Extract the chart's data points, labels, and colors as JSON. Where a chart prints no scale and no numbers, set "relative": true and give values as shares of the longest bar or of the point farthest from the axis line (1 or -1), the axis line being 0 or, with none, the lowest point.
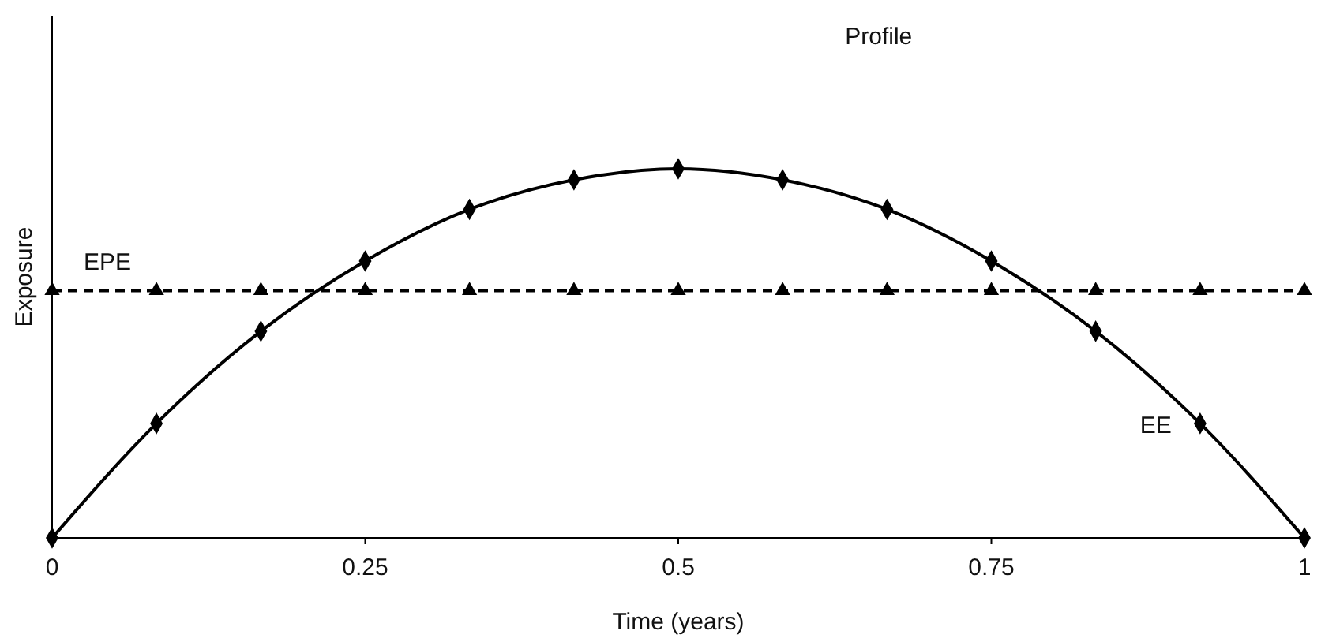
{
  "chart_data": {
    "type": "line",
    "title": "Profile",
    "xlabel": "Time (years)",
    "ylabel": "Exposure",
    "relative": true,
    "xlim": [
      0,
      1
    ],
    "xticks": [
      0,
      0.25,
      0.5,
      0.75,
      1
    ],
    "x": [
      0,
      0.0833,
      0.1667,
      0.25,
      0.3333,
      0.4167,
      0.5,
      0.5833,
      0.6667,
      0.75,
      0.8333,
      0.9167,
      1
    ],
    "grid": false,
    "series": [
      {
        "name": "EE",
        "color": "#000000",
        "marker": "diamond",
        "line_style": "solid",
        "values": [
          0,
          0.31,
          0.56,
          0.75,
          0.89,
          0.97,
          1,
          0.97,
          0.89,
          0.75,
          0.56,
          0.31,
          0
        ]
      },
      {
        "name": "EPE",
        "color": "#000000",
        "marker": "triangle",
        "line_style": "dashed",
        "values": [
          0.67,
          0.67,
          0.67,
          0.67,
          0.67,
          0.67,
          0.67,
          0.67,
          0.67,
          0.67,
          0.67,
          0.67,
          0.67
        ]
      }
    ]
  }
}
